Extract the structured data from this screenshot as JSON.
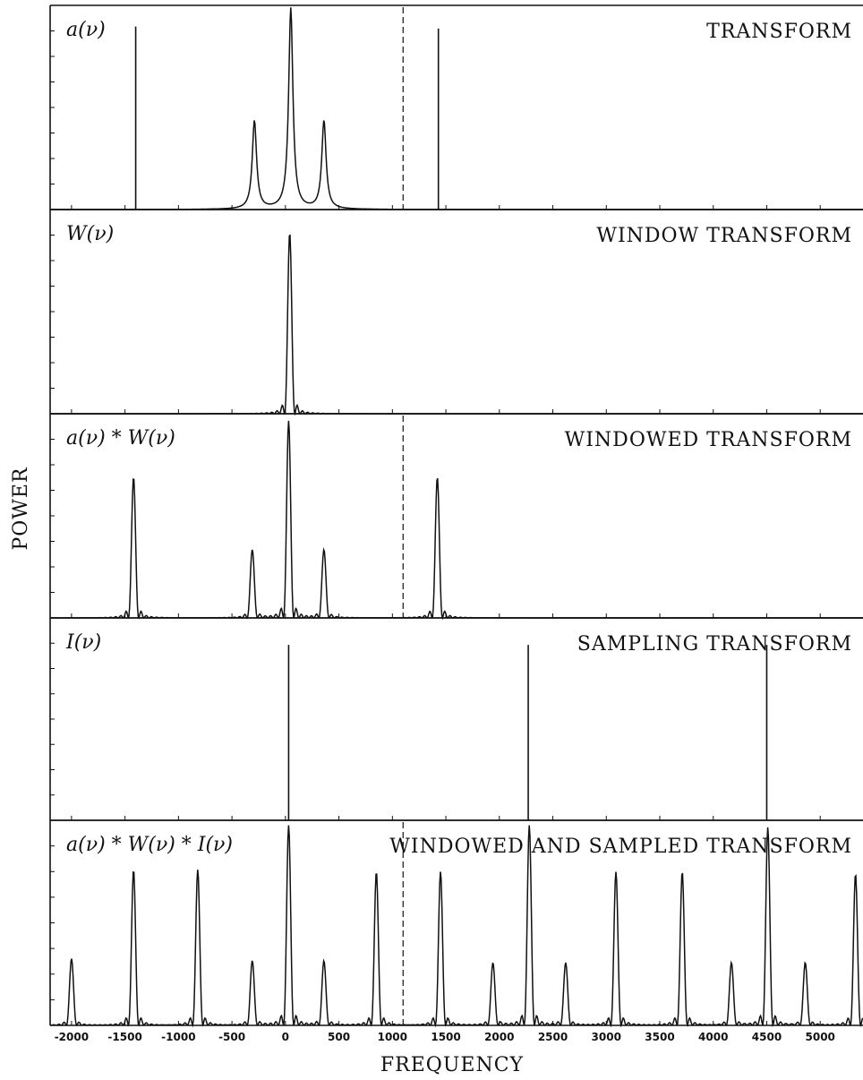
{
  "chart_data": {
    "type": "line",
    "xlabel": "FREQUENCY",
    "ylabel": "POWER",
    "xlim": [
      -2200,
      5400
    ],
    "x_ticks": [
      -2000,
      -1500,
      -1000,
      -500,
      0,
      500,
      1000,
      1500,
      2000,
      2500,
      3000,
      3500,
      4000,
      4500,
      5000
    ],
    "nyquist_line_x": 1100,
    "panels": [
      {
        "id": "transform",
        "math_label": "a(ν)",
        "title": "TRANSFORM",
        "y_range": [
          0,
          1
        ],
        "peaks": [
          {
            "x": -1400,
            "height": 0.91,
            "kind": "delta"
          },
          {
            "x": -290,
            "height": 0.44,
            "kind": "lorentzian"
          },
          {
            "x": 50,
            "height": 1.0,
            "kind": "lorentzian"
          },
          {
            "x": 360,
            "height": 0.44,
            "kind": "lorentzian"
          },
          {
            "x": 1430,
            "height": 0.9,
            "kind": "delta"
          }
        ]
      },
      {
        "id": "window",
        "math_label": "W(ν)",
        "title": "WINDOW TRANSFORM",
        "y_range": [
          0,
          1
        ],
        "peaks": [
          {
            "x": 40,
            "height": 0.9,
            "kind": "sinc2"
          }
        ]
      },
      {
        "id": "windowed",
        "math_label": "a(ν) * W(ν)",
        "title": "WINDOWED TRANSFORM",
        "y_range": [
          0,
          1
        ],
        "peaks": [
          {
            "x": -1420,
            "height": 0.7,
            "kind": "sinc2"
          },
          {
            "x": -310,
            "height": 0.34,
            "kind": "sinc2"
          },
          {
            "x": 30,
            "height": 0.98,
            "kind": "sinc2"
          },
          {
            "x": 360,
            "height": 0.34,
            "kind": "sinc2"
          },
          {
            "x": 1420,
            "height": 0.7,
            "kind": "sinc2"
          }
        ]
      },
      {
        "id": "sampling",
        "math_label": "I(ν)",
        "title": "SAMPLING TRANSFORM",
        "y_range": [
          0,
          1
        ],
        "peaks": [
          {
            "x": 30,
            "height": 0.88,
            "kind": "delta"
          },
          {
            "x": 2270,
            "height": 0.88,
            "kind": "delta"
          },
          {
            "x": 4500,
            "height": 0.88,
            "kind": "delta"
          }
        ]
      },
      {
        "id": "windowed_sampled",
        "math_label": "a(ν) * W(ν) * I(ν)",
        "title": "WINDOWED AND SAMPLED TRANSFORM",
        "y_range": [
          0,
          1
        ],
        "peaks": [
          {
            "x": -2000,
            "height": 0.33,
            "kind": "sinc2"
          },
          {
            "x": -1420,
            "height": 0.77,
            "kind": "sinc2"
          },
          {
            "x": -820,
            "height": 0.77,
            "kind": "sinc2"
          },
          {
            "x": -310,
            "height": 0.32,
            "kind": "sinc2"
          },
          {
            "x": 30,
            "height": 0.99,
            "kind": "sinc2"
          },
          {
            "x": 360,
            "height": 0.32,
            "kind": "sinc2"
          },
          {
            "x": 850,
            "height": 0.76,
            "kind": "sinc2"
          },
          {
            "x": 1450,
            "height": 0.76,
            "kind": "sinc2"
          },
          {
            "x": 1940,
            "height": 0.31,
            "kind": "sinc2"
          },
          {
            "x": 2280,
            "height": 0.99,
            "kind": "sinc2"
          },
          {
            "x": 2620,
            "height": 0.31,
            "kind": "sinc2"
          },
          {
            "x": 3090,
            "height": 0.76,
            "kind": "sinc2"
          },
          {
            "x": 3710,
            "height": 0.76,
            "kind": "sinc2"
          },
          {
            "x": 4170,
            "height": 0.31,
            "kind": "sinc2"
          },
          {
            "x": 4510,
            "height": 0.98,
            "kind": "sinc2"
          },
          {
            "x": 4860,
            "height": 0.31,
            "kind": "sinc2"
          },
          {
            "x": 5330,
            "height": 0.75,
            "kind": "sinc2"
          }
        ]
      }
    ]
  }
}
